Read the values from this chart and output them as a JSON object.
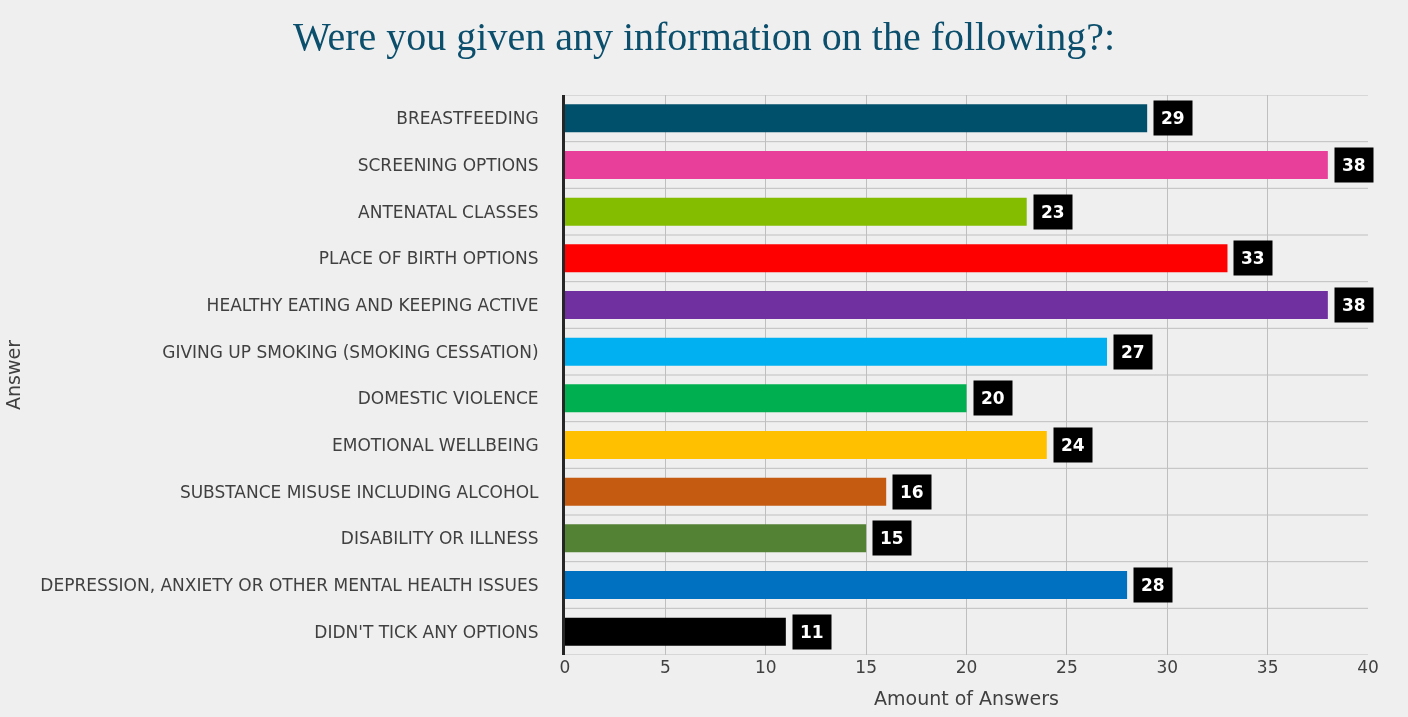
{
  "chart_data": {
    "type": "bar",
    "orientation": "horizontal",
    "title": "Were you given any information on the following?:",
    "xlabel": "Amount of Answers",
    "ylabel": "Answer",
    "categories": [
      "BREASTFEEDING",
      "SCREENING OPTIONS",
      "ANTENATAL CLASSES",
      "PLACE OF BIRTH OPTIONS",
      "HEALTHY EATING AND KEEPING ACTIVE",
      "GIVING UP SMOKING (SMOKING CESSATION)",
      "DOMESTIC VIOLENCE",
      "EMOTIONAL WELLBEING",
      "SUBSTANCE MISUSE INCLUDING ALCOHOL",
      "DISABILITY OR ILLNESS",
      "DEPRESSION, ANXIETY OR OTHER MENTAL HEALTH ISSUES",
      "DIDN'T TICK ANY OPTIONS"
    ],
    "values": [
      29,
      38,
      23,
      33,
      38,
      27,
      20,
      24,
      16,
      15,
      28,
      11
    ],
    "colors": [
      "#004f6b",
      "#e8409a",
      "#84bd00",
      "#ff0000",
      "#7030a0",
      "#00b0f0",
      "#00b050",
      "#ffc000",
      "#c55a11",
      "#548235",
      "#0070c0",
      "#000000"
    ],
    "xlim": [
      0,
      40
    ],
    "xticks": [
      0,
      5,
      10,
      15,
      20,
      25,
      30,
      35,
      40
    ],
    "grid": true,
    "data_labels": true
  }
}
